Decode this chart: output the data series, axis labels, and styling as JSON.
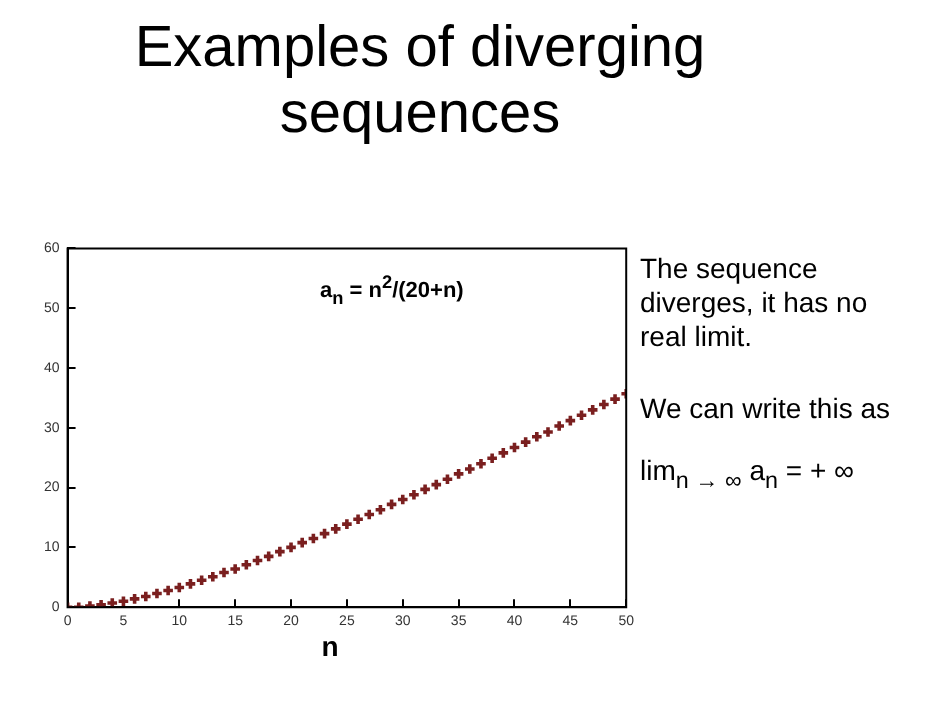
{
  "chart_data": {
    "type": "scatter",
    "title": "Examples of diverging sequences",
    "xlabel": "n",
    "x": [
      0,
      1,
      2,
      3,
      4,
      5,
      6,
      7,
      8,
      9,
      10,
      11,
      12,
      13,
      14,
      15,
      16,
      17,
      18,
      19,
      20,
      21,
      22,
      23,
      24,
      25,
      26,
      27,
      28,
      29,
      30,
      31,
      32,
      33,
      34,
      35,
      36,
      37,
      38,
      39,
      40,
      41,
      42,
      43,
      44,
      45,
      46,
      47,
      48,
      49,
      50
    ],
    "values": [
      0,
      0.0,
      0.2,
      0.4,
      0.7,
      1.0,
      1.4,
      1.8,
      2.3,
      2.8,
      3.3,
      3.9,
      4.5,
      5.1,
      5.8,
      6.4,
      7.1,
      7.8,
      8.5,
      9.3,
      10,
      10.8,
      11.5,
      12.3,
      13.1,
      13.9,
      14.7,
      15.5,
      16.3,
      17.2,
      18,
      18.8,
      19.7,
      20.5,
      21.4,
      22.3,
      23.1,
      24.0,
      24.9,
      25.8,
      26.7,
      27.6,
      28.5,
      29.3,
      30.3,
      31.2,
      32.1,
      33.0,
      33.9,
      34.8,
      35.7
    ],
    "color": "#7a1f1f",
    "marker": "cross",
    "grid": false,
    "xlim": [
      0,
      50
    ],
    "xticks": [
      0,
      5,
      10,
      15,
      20,
      25,
      30,
      35,
      40,
      45,
      50
    ],
    "ylim": [
      0,
      60
    ],
    "yticks": [
      0,
      10,
      20,
      30,
      40,
      50,
      60
    ],
    "annotations": [
      "a$_{n}$ = n$^{2}$/(20+n)",
      "The sequence diverges, it has no real limit.",
      "We can write this as",
      "lim$_{n → ∞}$ a$_{n}$ = + ∞"
    ]
  }
}
